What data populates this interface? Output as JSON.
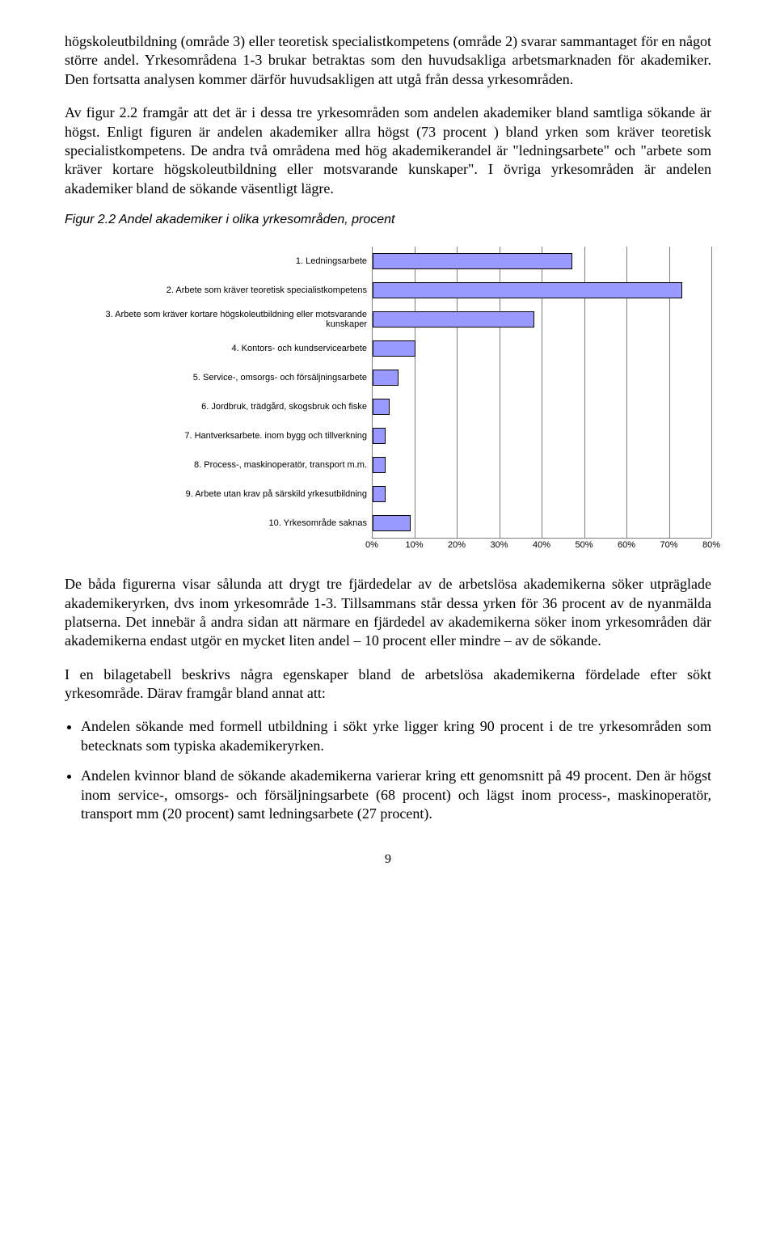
{
  "paragraphs": {
    "p1": "högskoleutbildning (område 3) eller teoretisk specialistkompetens (område 2) svarar sammantaget för en något större andel. Yrkesområdena 1-3 brukar betraktas som den huvudsakliga arbetsmarknaden för akademiker. Den fortsatta analysen kommer därför huvudsakligen att utgå från dessa yrkesområden.",
    "p2": "Av figur 2.2 framgår att det är i dessa tre yrkesområden som andelen akademiker bland samtliga sökande är högst. Enligt figuren är andelen akademiker allra högst (73 procent ) bland yrken som kräver teoretisk specialistkompetens. De andra två områdena med hög akademikerandel är \"ledningsarbete\" och \"arbete som kräver kortare högskoleutbildning eller motsvarande kunskaper\". I övriga yrkesområden är andelen akademiker bland de sökande väsentligt lägre.",
    "p3": "De båda figurerna visar sålunda att drygt tre fjärdedelar av de arbetslösa akademikerna söker utpräglade akademikeryrken, dvs inom yrkesområde 1-3. Tillsammans står dessa yrken för 36 procent av de nyanmälda platserna. Det innebär å andra sidan att närmare en fjärdedel av akademikerna söker inom yrkesområden där akademikerna endast utgör en mycket liten andel – 10 procent eller mindre – av de sökande.",
    "p4": "I en bilagetabell beskrivs några egenskaper bland de arbetslösa akademikerna fördelade efter sökt yrkesområde. Därav framgår bland annat att:"
  },
  "figure_caption": "Figur 2.2 Andel akademiker i olika yrkesområden, procent",
  "chart": {
    "bar_color": "#9999ff",
    "bar_border": "#000000",
    "grid_color": "#808080",
    "xmax": 80,
    "xtick_step": 10,
    "ticks": [
      "0%",
      "10%",
      "20%",
      "30%",
      "40%",
      "50%",
      "60%",
      "70%",
      "80%"
    ],
    "categories": [
      {
        "label": "1. Ledningsarbete",
        "value": 47
      },
      {
        "label": "2. Arbete som kräver teoretisk specialistkompetens",
        "value": 73
      },
      {
        "label": "3. Arbete som kräver kortare högskoleutbildning eller motsvarande kunskaper",
        "value": 38
      },
      {
        "label": "4. Kontors- och kundservicearbete",
        "value": 10
      },
      {
        "label": "5. Service-, omsorgs- och försäljningsarbete",
        "value": 6
      },
      {
        "label": "6. Jordbruk, trädgård, skogsbruk och fiske",
        "value": 4
      },
      {
        "label": "7. Hantverksarbete. inom bygg och tillverkning",
        "value": 3
      },
      {
        "label": "8. Process-, maskinoperatör, transport m.m.",
        "value": 3
      },
      {
        "label": "9. Arbete utan krav på särskild yrkesutbildning",
        "value": 3
      },
      {
        "label": "10. Yrkesområde saknas",
        "value": 9
      }
    ]
  },
  "bullets": {
    "b1": "Andelen sökande med formell utbildning i sökt yrke ligger kring 90 procent i de tre yrkesområden som betecknats som typiska akademikeryrken.",
    "b2": "Andelen kvinnor bland de sökande akademikerna varierar kring ett genomsnitt på 49 procent. Den är högst inom service-, omsorgs- och försäljningsarbete (68 procent) och lägst inom process-, maskinoperatör, transport mm (20 procent) samt ledningsarbete (27 procent)."
  },
  "page_number": "9"
}
